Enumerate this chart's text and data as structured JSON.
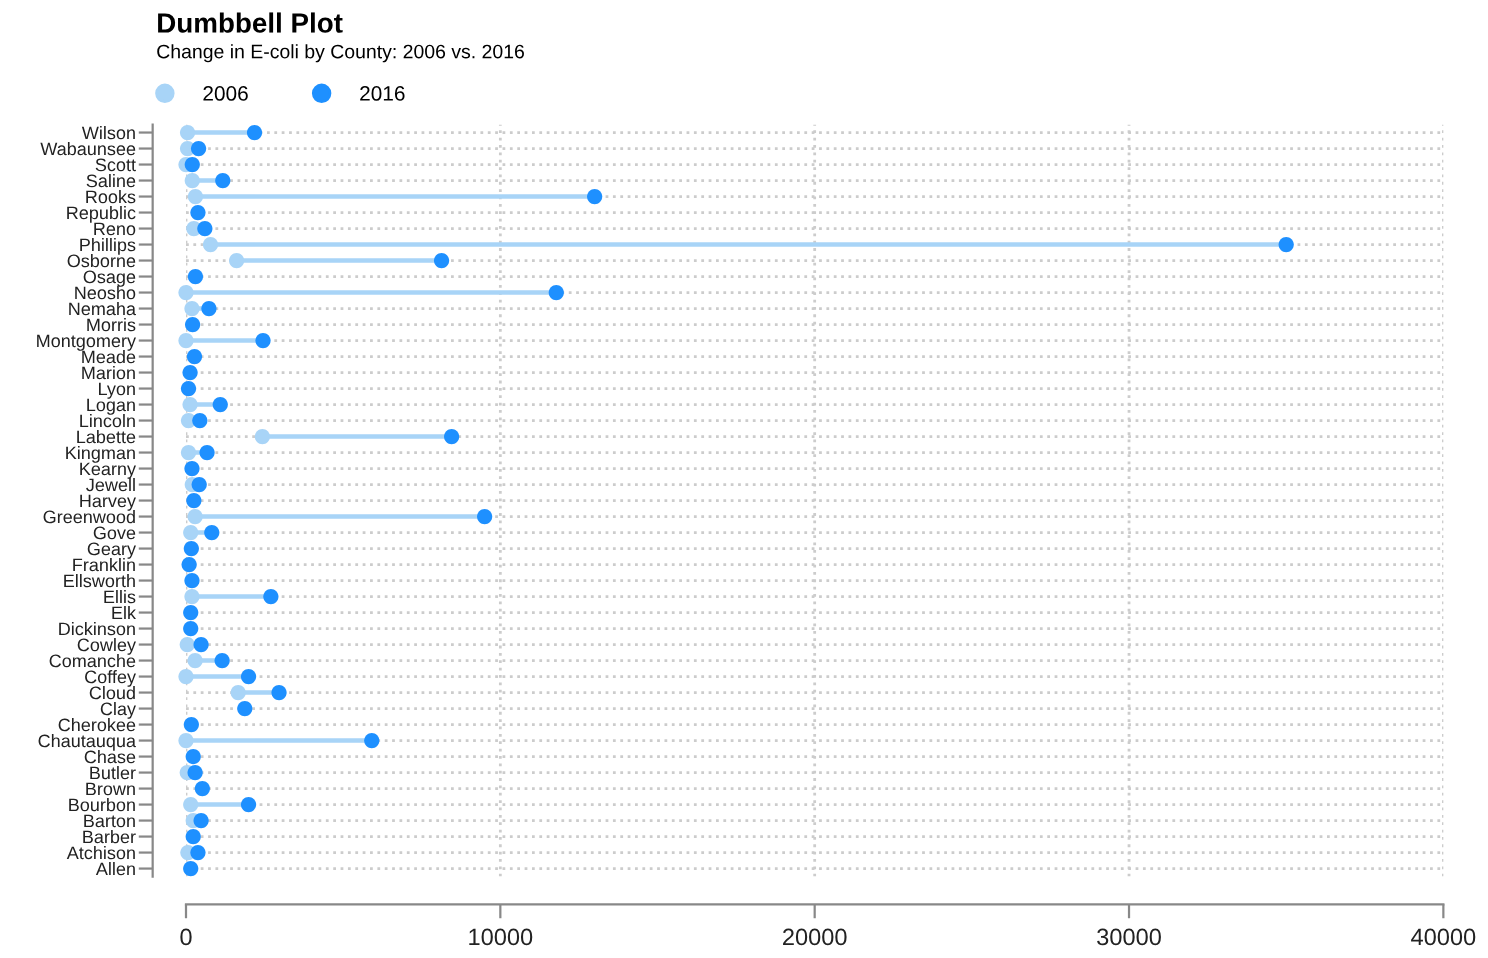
{
  "chart_data": {
    "type": "scatter",
    "orientation": "horizontal",
    "title": "Dumbbell Plot",
    "subtitle": "Change in E-coli by County: 2006 vs. 2016",
    "categories": [
      "Wilson",
      "Wabaunsee",
      "Scott",
      "Saline",
      "Rooks",
      "Republic",
      "Reno",
      "Phillips",
      "Osborne",
      "Osage",
      "Neosho",
      "Nemaha",
      "Morris",
      "Montgomery",
      "Meade",
      "Marion",
      "Lyon",
      "Logan",
      "Lincoln",
      "Labette",
      "Kingman",
      "Kearny",
      "Jewell",
      "Harvey",
      "Greenwood",
      "Gove",
      "Geary",
      "Franklin",
      "Ellsworth",
      "Ellis",
      "Elk",
      "Dickinson",
      "Cowley",
      "Comanche",
      "Coffey",
      "Cloud",
      "Clay",
      "Cherokee",
      "Chautauqua",
      "Chase",
      "Butler",
      "Brown",
      "Bourbon",
      "Barton",
      "Barber",
      "Atchison",
      "Allen"
    ],
    "series": [
      {
        "name": "2006",
        "color": "#a8d4f7",
        "values": [
          50,
          50,
          0,
          200,
          300,
          null,
          250,
          780,
          1610,
          null,
          0,
          190,
          null,
          0,
          null,
          null,
          null,
          130,
          80,
          2430,
          80,
          null,
          200,
          null,
          290,
          150,
          null,
          null,
          null,
          190,
          null,
          null,
          40,
          290,
          0,
          1660,
          null,
          null,
          0,
          null,
          40,
          null,
          150,
          230,
          null,
          60,
          null
        ]
      },
      {
        "name": "2016",
        "color": "#1e90ff",
        "values": [
          2180,
          400,
          200,
          1170,
          13000,
          380,
          600,
          35000,
          8130,
          300,
          11780,
          730,
          210,
          2450,
          270,
          130,
          80,
          1090,
          440,
          8450,
          670,
          190,
          420,
          250,
          9500,
          820,
          170,
          100,
          190,
          2700,
          150,
          150,
          480,
          1150,
          1990,
          2960,
          1870,
          170,
          5910,
          230,
          290,
          520,
          1990,
          480,
          230,
          380,
          150
        ]
      }
    ],
    "xlim": [
      0,
      40000
    ],
    "xticks": [
      0,
      10000,
      20000,
      30000,
      40000
    ],
    "grid": true,
    "legend": "top left",
    "marker": "circle"
  }
}
